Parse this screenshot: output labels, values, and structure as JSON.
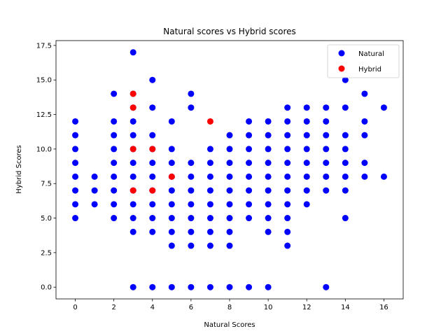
{
  "chart_data": {
    "type": "scatter",
    "title": "Natural scores vs Hybrid scores",
    "xlabel": "Natural Scores",
    "ylabel": "Hybrid Scores",
    "xlim": [
      -1.0,
      17.0
    ],
    "ylim": [
      -0.85,
      17.85
    ],
    "xticks": [
      0,
      2,
      4,
      6,
      8,
      10,
      12,
      14,
      16
    ],
    "yticks": [
      0.0,
      2.5,
      5.0,
      7.5,
      10.0,
      12.5,
      15.0,
      17.5
    ],
    "yticklabels": [
      "0.0",
      "2.5",
      "5.0",
      "7.5",
      "10.0",
      "12.5",
      "15.0",
      "17.5"
    ],
    "legend": {
      "position": "top-right",
      "entries": [
        "Natural",
        "Hybrid"
      ]
    },
    "grid": false,
    "series": [
      {
        "name": "Natural",
        "color": "#0000ff",
        "points": [
          [
            0,
            5
          ],
          [
            0,
            6
          ],
          [
            0,
            7
          ],
          [
            0,
            8
          ],
          [
            0,
            9
          ],
          [
            0,
            10
          ],
          [
            0,
            11
          ],
          [
            0,
            12
          ],
          [
            1,
            6
          ],
          [
            1,
            7
          ],
          [
            1,
            8
          ],
          [
            2,
            5
          ],
          [
            2,
            6
          ],
          [
            2,
            7
          ],
          [
            2,
            8
          ],
          [
            2,
            9
          ],
          [
            2,
            10
          ],
          [
            2,
            11
          ],
          [
            2,
            12
          ],
          [
            2,
            14
          ],
          [
            3,
            0
          ],
          [
            3,
            4
          ],
          [
            3,
            5
          ],
          [
            3,
            6
          ],
          [
            3,
            7
          ],
          [
            3,
            8
          ],
          [
            3,
            9
          ],
          [
            3,
            10
          ],
          [
            3,
            11
          ],
          [
            3,
            12
          ],
          [
            3,
            13
          ],
          [
            3,
            14
          ],
          [
            3,
            17
          ],
          [
            4,
            0
          ],
          [
            4,
            4
          ],
          [
            4,
            5
          ],
          [
            4,
            6
          ],
          [
            4,
            7
          ],
          [
            4,
            8
          ],
          [
            4,
            9
          ],
          [
            4,
            10
          ],
          [
            4,
            11
          ],
          [
            4,
            13
          ],
          [
            4,
            15
          ],
          [
            5,
            0
          ],
          [
            5,
            3
          ],
          [
            5,
            4
          ],
          [
            5,
            5
          ],
          [
            5,
            6
          ],
          [
            5,
            7
          ],
          [
            5,
            8
          ],
          [
            5,
            9
          ],
          [
            5,
            10
          ],
          [
            5,
            12
          ],
          [
            6,
            0
          ],
          [
            6,
            3
          ],
          [
            6,
            4
          ],
          [
            6,
            5
          ],
          [
            6,
            6
          ],
          [
            6,
            7
          ],
          [
            6,
            8
          ],
          [
            6,
            9
          ],
          [
            6,
            13
          ],
          [
            6,
            14
          ],
          [
            7,
            0
          ],
          [
            7,
            3
          ],
          [
            7,
            4
          ],
          [
            7,
            5
          ],
          [
            7,
            6
          ],
          [
            7,
            7
          ],
          [
            7,
            8
          ],
          [
            7,
            9
          ],
          [
            7,
            10
          ],
          [
            8,
            0
          ],
          [
            8,
            3
          ],
          [
            8,
            4
          ],
          [
            8,
            5
          ],
          [
            8,
            6
          ],
          [
            8,
            7
          ],
          [
            8,
            8
          ],
          [
            8,
            9
          ],
          [
            8,
            10
          ],
          [
            8,
            11
          ],
          [
            9,
            0
          ],
          [
            9,
            5
          ],
          [
            9,
            6
          ],
          [
            9,
            7
          ],
          [
            9,
            8
          ],
          [
            9,
            9
          ],
          [
            9,
            10
          ],
          [
            9,
            11
          ],
          [
            9,
            12
          ],
          [
            10,
            0
          ],
          [
            10,
            4
          ],
          [
            10,
            5
          ],
          [
            10,
            6
          ],
          [
            10,
            7
          ],
          [
            10,
            8
          ],
          [
            10,
            9
          ],
          [
            10,
            10
          ],
          [
            10,
            11
          ],
          [
            10,
            12
          ],
          [
            11,
            3
          ],
          [
            11,
            4
          ],
          [
            11,
            5
          ],
          [
            11,
            6
          ],
          [
            11,
            7
          ],
          [
            11,
            8
          ],
          [
            11,
            9
          ],
          [
            11,
            10
          ],
          [
            11,
            11
          ],
          [
            11,
            12
          ],
          [
            11,
            13
          ],
          [
            12,
            6
          ],
          [
            12,
            7
          ],
          [
            12,
            8
          ],
          [
            12,
            9
          ],
          [
            12,
            10
          ],
          [
            12,
            11
          ],
          [
            12,
            12
          ],
          [
            12,
            13
          ],
          [
            13,
            0
          ],
          [
            13,
            7
          ],
          [
            13,
            8
          ],
          [
            13,
            9
          ],
          [
            13,
            10
          ],
          [
            13,
            11
          ],
          [
            13,
            12
          ],
          [
            13,
            13
          ],
          [
            14,
            5
          ],
          [
            14,
            7
          ],
          [
            14,
            8
          ],
          [
            14,
            9
          ],
          [
            14,
            10
          ],
          [
            14,
            11
          ],
          [
            14,
            13
          ],
          [
            14,
            15
          ],
          [
            15,
            8
          ],
          [
            15,
            9
          ],
          [
            15,
            11
          ],
          [
            15,
            12
          ],
          [
            15,
            14
          ],
          [
            16,
            8
          ],
          [
            16,
            13
          ]
        ]
      },
      {
        "name": "Hybrid",
        "color": "#ff0000",
        "points": [
          [
            3,
            7
          ],
          [
            3,
            10
          ],
          [
            3,
            13
          ],
          [
            3,
            14
          ],
          [
            4,
            7
          ],
          [
            4,
            10
          ],
          [
            5,
            8
          ],
          [
            7,
            12
          ]
        ]
      }
    ]
  }
}
